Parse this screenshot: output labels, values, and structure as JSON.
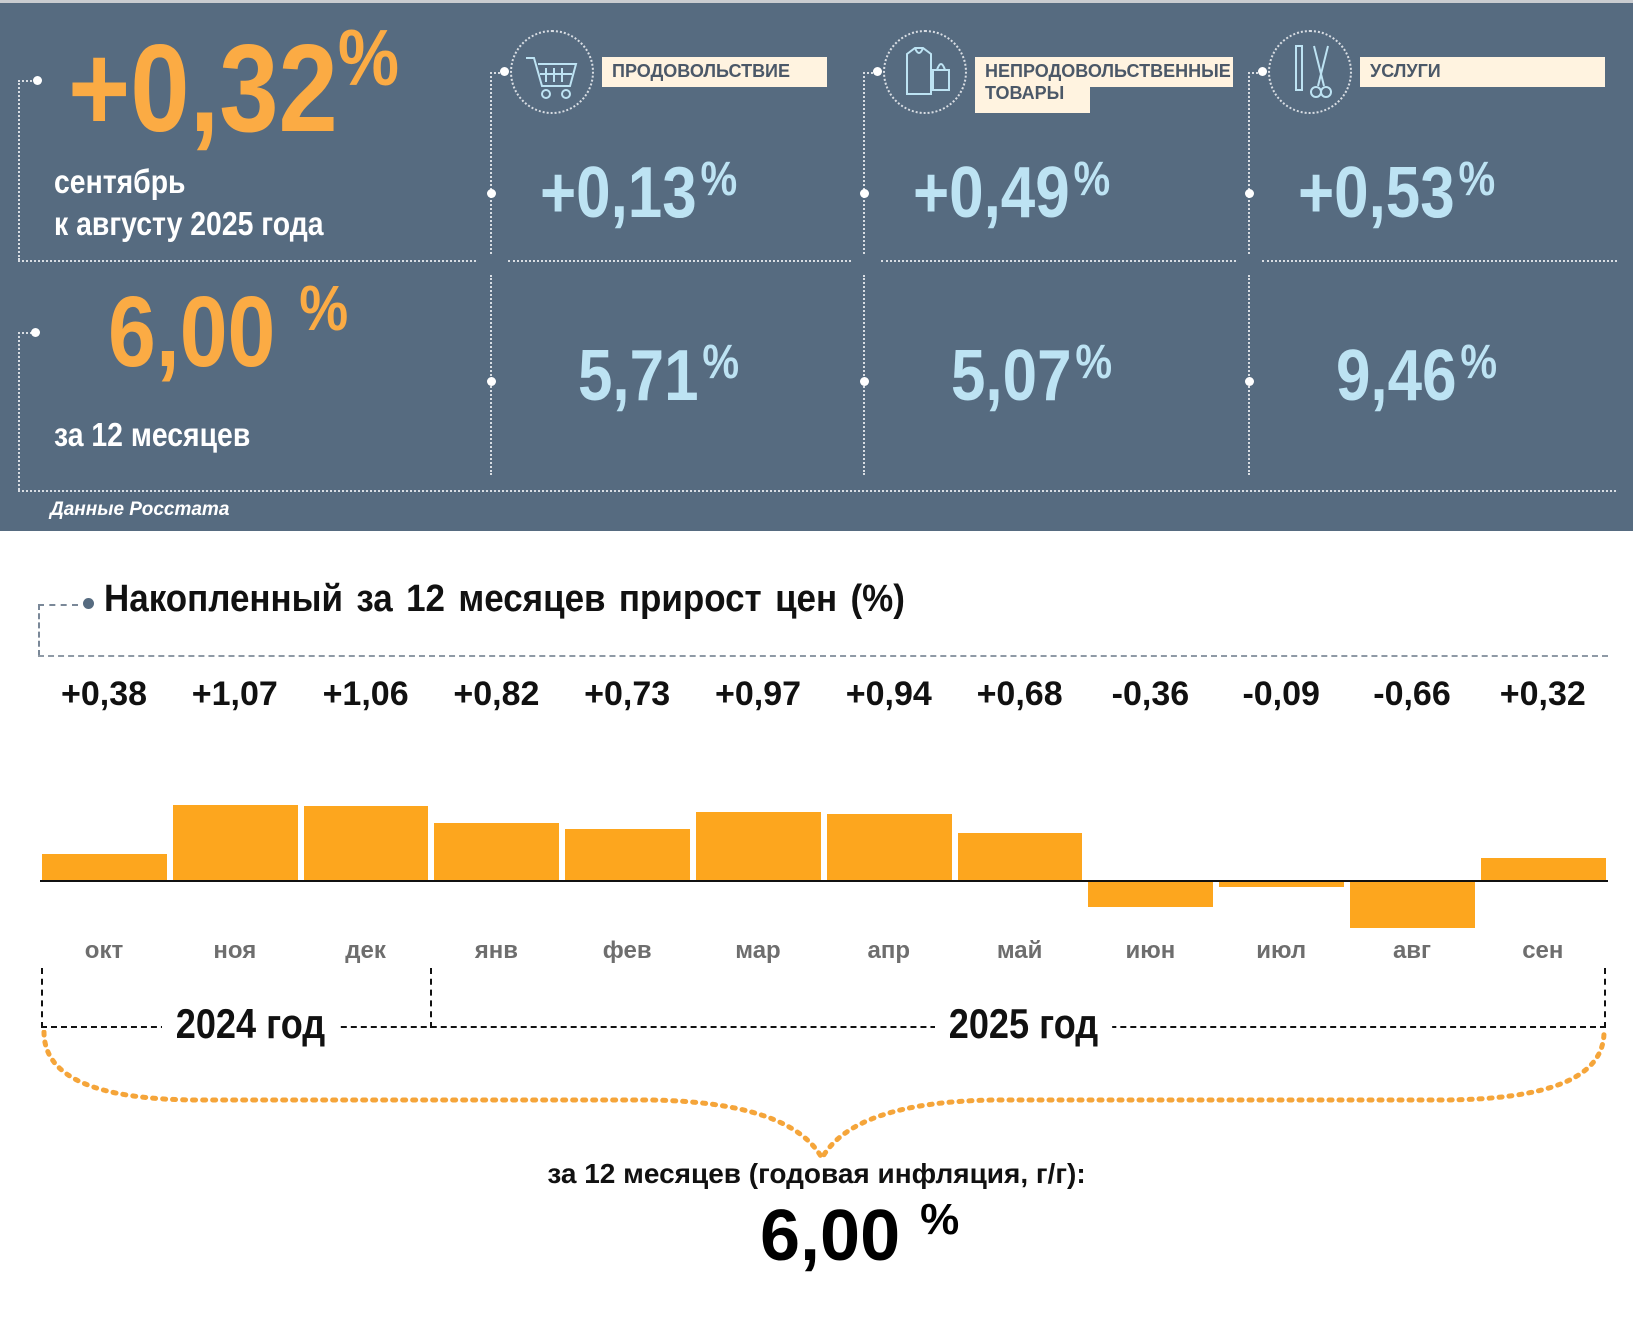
{
  "header": {
    "monthly_value": "+0,32",
    "monthly_pct": "%",
    "monthly_label_1": "сентябрь",
    "monthly_label_2": "к августу 2025 года",
    "annual_value": "6,00",
    "annual_pct": "%",
    "annual_label": "за 12 месяцев",
    "source": "Данные Росстата"
  },
  "categories": [
    {
      "name": "ПРОДОВОЛЬСТВИЕ",
      "icon": "shopping-cart-icon",
      "monthly": "+0,13",
      "annual": "5,71",
      "pct": "%"
    },
    {
      "name": "НЕПРОДОВОЛЬСТВЕННЫЕ",
      "name2": "ТОВАРЫ",
      "icon": "clothing-bag-icon",
      "monthly": "+0,49",
      "annual": "5,07",
      "pct": "%"
    },
    {
      "name": "УСЛУГИ",
      "icon": "comb-scissors-icon",
      "monthly": "+0,53",
      "annual": "9,46",
      "pct": "%"
    }
  ],
  "colors": {
    "panel": "#566b80",
    "accent": "#fbab44",
    "value_blue": "#bde3f3",
    "bar": "#fda61e"
  },
  "chart_data": {
    "type": "bar",
    "title": "Накопленный за 12 месяцев прирост цен (%)",
    "categories": [
      "окт",
      "ноя",
      "дек",
      "янв",
      "фев",
      "мар",
      "апр",
      "май",
      "июн",
      "июл",
      "авг",
      "сен"
    ],
    "values": [
      0.38,
      1.07,
      1.06,
      0.82,
      0.73,
      0.97,
      0.94,
      0.68,
      -0.36,
      -0.09,
      -0.66,
      0.32
    ],
    "labels": [
      "+0,38",
      "+1,07",
      "+1,06",
      "+0,82",
      "+0,73",
      "+0,97",
      "+0,94",
      "+0,68",
      "-0,36",
      "-0,09",
      "-0,66",
      "+0,32"
    ],
    "years": [
      "2024 год",
      "2025 год"
    ],
    "summary_label": "за 12 месяцев (годовая инфляция, г/г):",
    "summary_value": "6,00",
    "summary_pct": "%"
  }
}
